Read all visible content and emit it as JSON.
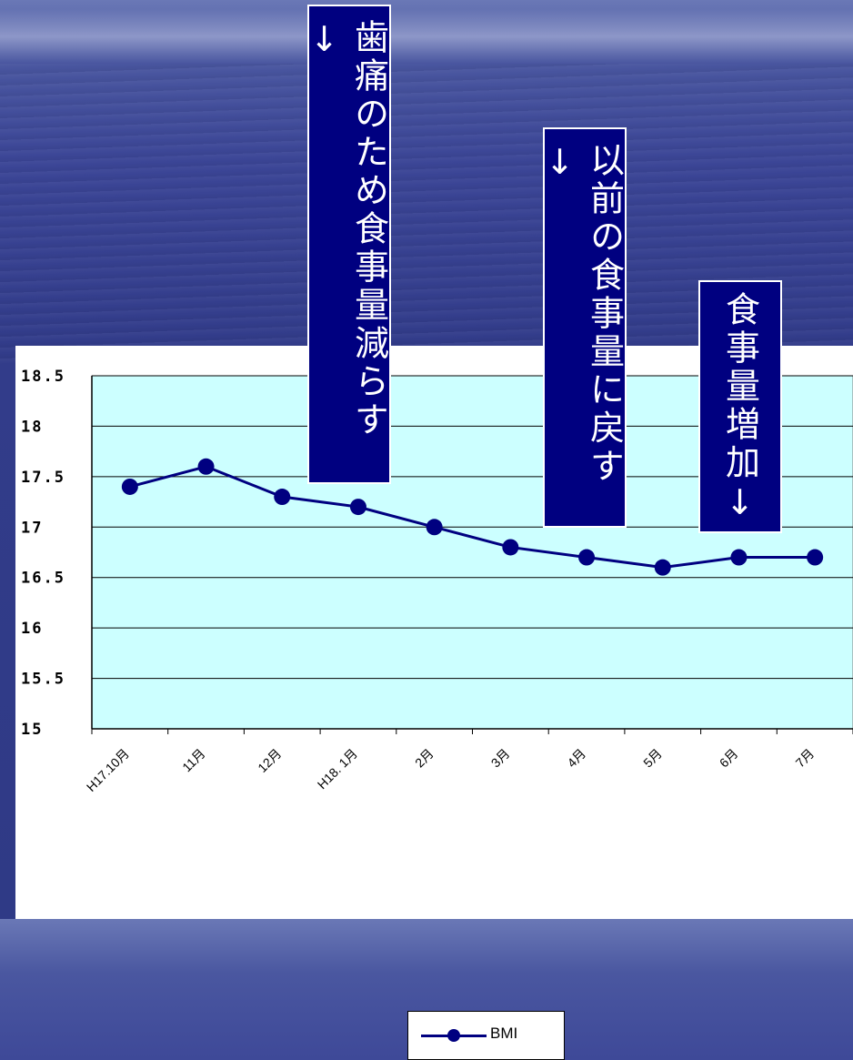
{
  "callouts": [
    {
      "text": "歯痛のため食事量減らす↓"
    },
    {
      "text": "以前の食事量に戻す↓"
    },
    {
      "text": "食事量増加↓"
    }
  ],
  "colors": {
    "plot_bg": "#ccffff",
    "series": "#000080",
    "callout_bg": "#000080"
  },
  "chart_data": {
    "type": "line",
    "categories": [
      "H17.10月",
      "11月",
      "12月",
      "H18. 1月",
      "2月",
      "3月",
      "4月",
      "5月",
      "6月",
      "7月"
    ],
    "series": [
      {
        "name": "BMI",
        "values": [
          17.4,
          17.6,
          17.3,
          17.2,
          17.0,
          16.8,
          16.7,
          16.6,
          16.7,
          16.7
        ]
      }
    ],
    "ylim": [
      15,
      18.5
    ],
    "yticks": [
      "15",
      "15.5",
      "16",
      "16.5",
      "17",
      "17.5",
      "18",
      "18.5"
    ],
    "title": "",
    "xlabel": "",
    "ylabel": "",
    "grid": true,
    "legend": "bottom-center"
  }
}
